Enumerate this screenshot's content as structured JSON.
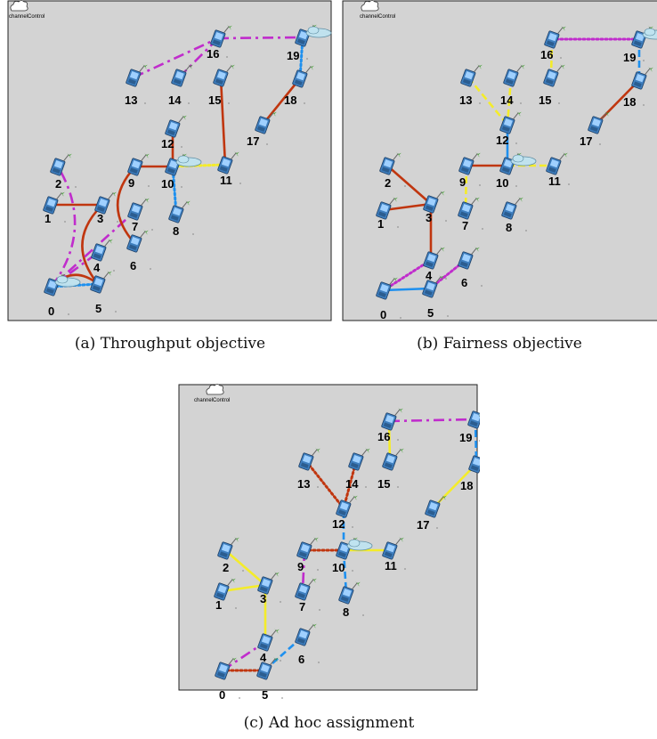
{
  "colors": {
    "background": "#d3d3d3",
    "red": "#c0360f",
    "magenta": "#c02ccc",
    "cyan": "#1e90ef",
    "yellow": "#f4ec2a",
    "node_body": "#3f7fbf",
    "antenna": "#3a9b2a"
  },
  "icons": {
    "node": "wireless-node-icon",
    "gateway": "cloud-icon",
    "channel_control": "cloud-icon"
  },
  "channel_control_label": "channelControl",
  "panels": [
    {
      "id": "a",
      "caption": "(a) Throughput objective",
      "nodes": [
        {
          "id": "0",
          "label": "0"
        },
        {
          "id": "1",
          "label": "1"
        },
        {
          "id": "2",
          "label": "2"
        },
        {
          "id": "3",
          "label": "3"
        },
        {
          "id": "4",
          "label": "4"
        },
        {
          "id": "5",
          "label": "5"
        },
        {
          "id": "6",
          "label": "6"
        },
        {
          "id": "7",
          "label": "7"
        },
        {
          "id": "8",
          "label": "8"
        },
        {
          "id": "9",
          "label": "9"
        },
        {
          "id": "10",
          "label": "10"
        },
        {
          "id": "11",
          "label": "11"
        },
        {
          "id": "12",
          "label": "12"
        },
        {
          "id": "13",
          "label": "13"
        },
        {
          "id": "14",
          "label": "14"
        },
        {
          "id": "15",
          "label": "15"
        },
        {
          "id": "16",
          "label": "16"
        },
        {
          "id": "17",
          "label": "17"
        },
        {
          "id": "18",
          "label": "18"
        },
        {
          "id": "19",
          "label": "19"
        }
      ],
      "gateways": [
        "0",
        "10",
        "19"
      ],
      "links": [
        {
          "from": "1",
          "to": "3",
          "color": "red",
          "style": "solid"
        },
        {
          "from": "3",
          "to": "5",
          "color": "red",
          "style": "solid",
          "curve": true
        },
        {
          "from": "5",
          "to": "0",
          "color": "red",
          "style": "solid",
          "curve": true
        },
        {
          "from": "0",
          "to": "2",
          "color": "magenta",
          "style": "dashdot",
          "curve": true
        },
        {
          "from": "0",
          "to": "4",
          "color": "magenta",
          "style": "dashdot"
        },
        {
          "from": "0",
          "to": "7",
          "color": "magenta",
          "style": "dashdot"
        },
        {
          "from": "0",
          "to": "5",
          "color": "cyan",
          "style": "dotted"
        },
        {
          "from": "9",
          "to": "10",
          "color": "red",
          "style": "solid"
        },
        {
          "from": "9",
          "to": "6",
          "color": "red",
          "style": "solid",
          "curve": true
        },
        {
          "from": "10",
          "to": "12",
          "color": "red",
          "style": "solid"
        },
        {
          "from": "10",
          "to": "8",
          "color": "cyan",
          "style": "dotted"
        },
        {
          "from": "10",
          "to": "11",
          "color": "yellow",
          "style": "dotted"
        },
        {
          "from": "11",
          "to": "15",
          "color": "red",
          "style": "solid"
        },
        {
          "from": "13",
          "to": "16",
          "color": "magenta",
          "style": "dashdot"
        },
        {
          "from": "14",
          "to": "16",
          "color": "magenta",
          "style": "dashdot"
        },
        {
          "from": "16",
          "to": "19",
          "color": "magenta",
          "style": "dashdot"
        },
        {
          "from": "19",
          "to": "18",
          "color": "cyan",
          "style": "dotted"
        },
        {
          "from": "18",
          "to": "17",
          "color": "red",
          "style": "solid"
        }
      ]
    },
    {
      "id": "b",
      "caption": "(b) Fairness objective",
      "nodes": [
        {
          "id": "0",
          "label": "0"
        },
        {
          "id": "1",
          "label": "1"
        },
        {
          "id": "2",
          "label": "2"
        },
        {
          "id": "3",
          "label": "3"
        },
        {
          "id": "4",
          "label": "4"
        },
        {
          "id": "5",
          "label": "5"
        },
        {
          "id": "6",
          "label": "6"
        },
        {
          "id": "7",
          "label": "7"
        },
        {
          "id": "8",
          "label": "8"
        },
        {
          "id": "9",
          "label": "9"
        },
        {
          "id": "10",
          "label": "10"
        },
        {
          "id": "11",
          "label": "11"
        },
        {
          "id": "12",
          "label": "12"
        },
        {
          "id": "13",
          "label": "13"
        },
        {
          "id": "14",
          "label": "14"
        },
        {
          "id": "15",
          "label": "15"
        },
        {
          "id": "16",
          "label": "16"
        },
        {
          "id": "17",
          "label": "17"
        },
        {
          "id": "18",
          "label": "18"
        },
        {
          "id": "19",
          "label": "19"
        }
      ],
      "gateways": [
        "10",
        "19"
      ],
      "links": [
        {
          "from": "1",
          "to": "3",
          "color": "red",
          "style": "solid"
        },
        {
          "from": "2",
          "to": "3",
          "color": "red",
          "style": "solid"
        },
        {
          "from": "3",
          "to": "4",
          "color": "red",
          "style": "solid"
        },
        {
          "from": "0",
          "to": "5",
          "color": "cyan",
          "style": "solid"
        },
        {
          "from": "0",
          "to": "4",
          "color": "magenta",
          "style": "dotted"
        },
        {
          "from": "5",
          "to": "6",
          "color": "magenta",
          "style": "dotted"
        },
        {
          "from": "9",
          "to": "10",
          "color": "red",
          "style": "solid"
        },
        {
          "from": "9",
          "to": "7",
          "color": "yellow",
          "style": "dashed"
        },
        {
          "from": "10",
          "to": "12",
          "color": "cyan",
          "style": "solid"
        },
        {
          "from": "10",
          "to": "11",
          "color": "yellow",
          "style": "dashed"
        },
        {
          "from": "13",
          "to": "12",
          "color": "yellow",
          "style": "dashed"
        },
        {
          "from": "14",
          "to": "12",
          "color": "yellow",
          "style": "dashed"
        },
        {
          "from": "16",
          "to": "19",
          "color": "magenta",
          "style": "dotted"
        },
        {
          "from": "16",
          "to": "15",
          "color": "yellow",
          "style": "dashed"
        },
        {
          "from": "19",
          "to": "18",
          "color": "cyan",
          "style": "dashed"
        },
        {
          "from": "18",
          "to": "17",
          "color": "red",
          "style": "solid"
        }
      ]
    },
    {
      "id": "c",
      "caption": "(c) Ad hoc assignment",
      "nodes": [
        {
          "id": "0",
          "label": "0"
        },
        {
          "id": "1",
          "label": "1"
        },
        {
          "id": "2",
          "label": "2"
        },
        {
          "id": "3",
          "label": "3"
        },
        {
          "id": "4",
          "label": "4"
        },
        {
          "id": "5",
          "label": "5"
        },
        {
          "id": "6",
          "label": "6"
        },
        {
          "id": "7",
          "label": "7"
        },
        {
          "id": "8",
          "label": "8"
        },
        {
          "id": "9",
          "label": "9"
        },
        {
          "id": "10",
          "label": "10"
        },
        {
          "id": "11",
          "label": "11"
        },
        {
          "id": "12",
          "label": "12"
        },
        {
          "id": "13",
          "label": "13"
        },
        {
          "id": "14",
          "label": "14"
        },
        {
          "id": "15",
          "label": "15"
        },
        {
          "id": "16",
          "label": "16"
        },
        {
          "id": "17",
          "label": "17"
        },
        {
          "id": "18",
          "label": "18"
        },
        {
          "id": "19",
          "label": "19"
        }
      ],
      "gateways": [
        "10",
        "19"
      ],
      "links": [
        {
          "from": "1",
          "to": "3",
          "color": "yellow",
          "style": "solid"
        },
        {
          "from": "2",
          "to": "3",
          "color": "yellow",
          "style": "solid"
        },
        {
          "from": "3",
          "to": "4",
          "color": "yellow",
          "style": "solid"
        },
        {
          "from": "0",
          "to": "5",
          "color": "red",
          "style": "dotted"
        },
        {
          "from": "0",
          "to": "4",
          "color": "magenta",
          "style": "dashdot"
        },
        {
          "from": "5",
          "to": "6",
          "color": "cyan",
          "style": "dashed"
        },
        {
          "from": "9",
          "to": "10",
          "color": "red",
          "style": "dotted"
        },
        {
          "from": "9",
          "to": "7",
          "color": "magenta",
          "style": "dashdot"
        },
        {
          "from": "10",
          "to": "8",
          "color": "cyan",
          "style": "dashed"
        },
        {
          "from": "10",
          "to": "11",
          "color": "yellow",
          "style": "solid"
        },
        {
          "from": "10",
          "to": "12",
          "color": "cyan",
          "style": "dashed"
        },
        {
          "from": "12",
          "to": "13",
          "color": "red",
          "style": "dotted"
        },
        {
          "from": "12",
          "to": "14",
          "color": "red",
          "style": "dotted"
        },
        {
          "from": "16",
          "to": "15",
          "color": "yellow",
          "style": "solid"
        },
        {
          "from": "16",
          "to": "19",
          "color": "magenta",
          "style": "dashdot"
        },
        {
          "from": "19",
          "to": "18",
          "color": "cyan",
          "style": "dashed"
        },
        {
          "from": "18",
          "to": "17",
          "color": "yellow",
          "style": "solid"
        }
      ]
    }
  ]
}
